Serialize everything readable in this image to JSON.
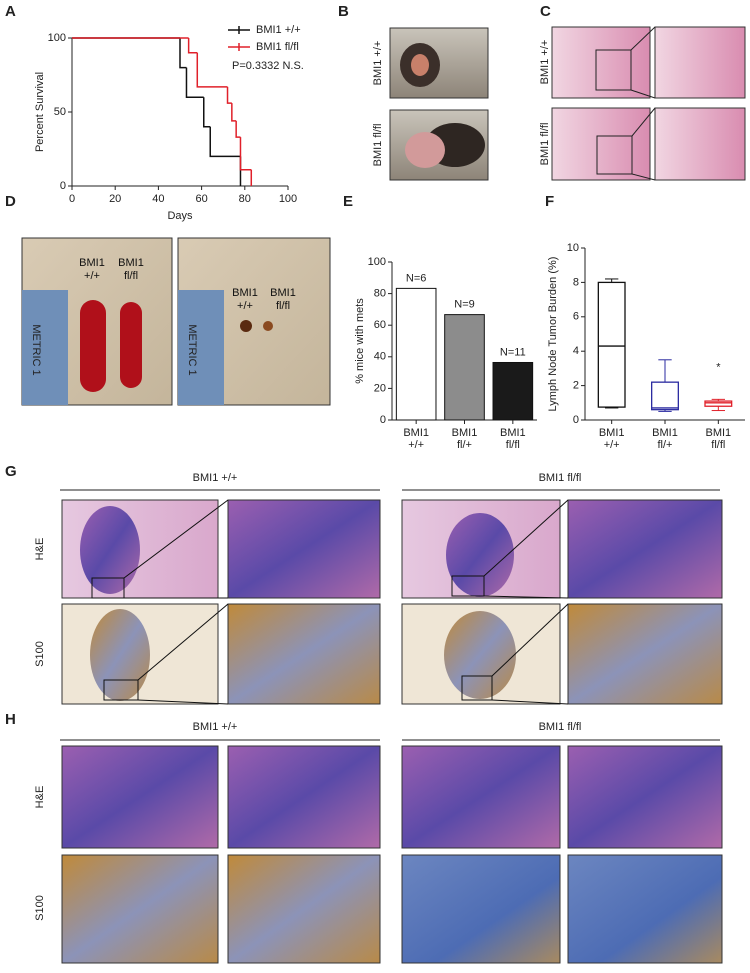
{
  "figure": {
    "panel_labels": [
      "A",
      "B",
      "C",
      "D",
      "E",
      "F",
      "G",
      "H"
    ],
    "B": {
      "labels": [
        "BMI1 +/+",
        "BMI1 fl/fl"
      ]
    },
    "C": {
      "labels": [
        "BMI1 +/+",
        "BMI1 fl/fl"
      ]
    },
    "D": {
      "labels": [
        "BMI1 +/+",
        "BMI1 fl/fl"
      ],
      "ruler": "METRIC 1"
    },
    "G": {
      "groups": [
        "BMI1 +/+",
        "BMI1 fl/fl"
      ],
      "rows": [
        "H&E",
        "S100"
      ]
    },
    "H": {
      "groups": [
        "BMI1 +/+",
        "BMI1 fl/fl"
      ],
      "rows": [
        "H&E",
        "S100"
      ]
    }
  },
  "chart_data": [
    {
      "type": "step",
      "xlabel": "Days",
      "ylabel": "Percent Survival",
      "xlim": [
        0,
        100
      ],
      "ylim": [
        0,
        100
      ],
      "xticks": [
        0,
        20,
        40,
        60,
        80,
        100
      ],
      "yticks": [
        0,
        50,
        100
      ],
      "annotation": "P=0.3332 N.S.",
      "series": [
        {
          "name": "BMI1 +/+",
          "color": "#111111",
          "x": [
            0,
            50,
            53,
            61,
            64,
            78
          ],
          "values": [
            100,
            80,
            60,
            40,
            20,
            0
          ]
        },
        {
          "name": "BMI1 fl/fl",
          "color": "#e0202a",
          "x": [
            0,
            54,
            58,
            72,
            74,
            76,
            78,
            83
          ],
          "values": [
            100,
            90,
            67,
            56,
            44,
            33,
            11,
            0
          ]
        }
      ]
    },
    {
      "type": "bar",
      "ylabel": "% mice with  mets",
      "categories": [
        "BMI1 +/+",
        "BMI1 fl/+",
        "BMI1 fl/fl"
      ],
      "values": [
        83.3,
        66.7,
        36.4
      ],
      "colors": [
        "#ffffff",
        "#8c8c8c",
        "#1a1a1a"
      ],
      "count_labels": [
        "N=6",
        "N=9",
        "N=11"
      ],
      "ylim": [
        0,
        100
      ],
      "yticks": [
        0,
        20,
        40,
        60,
        80,
        100
      ]
    },
    {
      "type": "box",
      "ylabel": "Lymph Node Tumor Burden (%)",
      "categories": [
        "BMI1 +/+",
        "BMI1 fl/+",
        "BMI1 fl/fl"
      ],
      "colors": [
        "#111111",
        "#2a2aa0",
        "#e0202a"
      ],
      "boxes": [
        {
          "min": 0.7,
          "q1": 0.75,
          "median": 4.3,
          "q3": 8.0,
          "max": 8.2
        },
        {
          "min": 0.5,
          "q1": 0.6,
          "median": 0.7,
          "q3": 2.2,
          "max": 3.5
        },
        {
          "min": 0.55,
          "q1": 0.8,
          "median": 1.0,
          "q3": 1.1,
          "max": 1.2
        }
      ],
      "annotation": "*",
      "ylim": [
        0,
        10
      ],
      "yticks": [
        0,
        2,
        4,
        6,
        8,
        10
      ]
    }
  ]
}
